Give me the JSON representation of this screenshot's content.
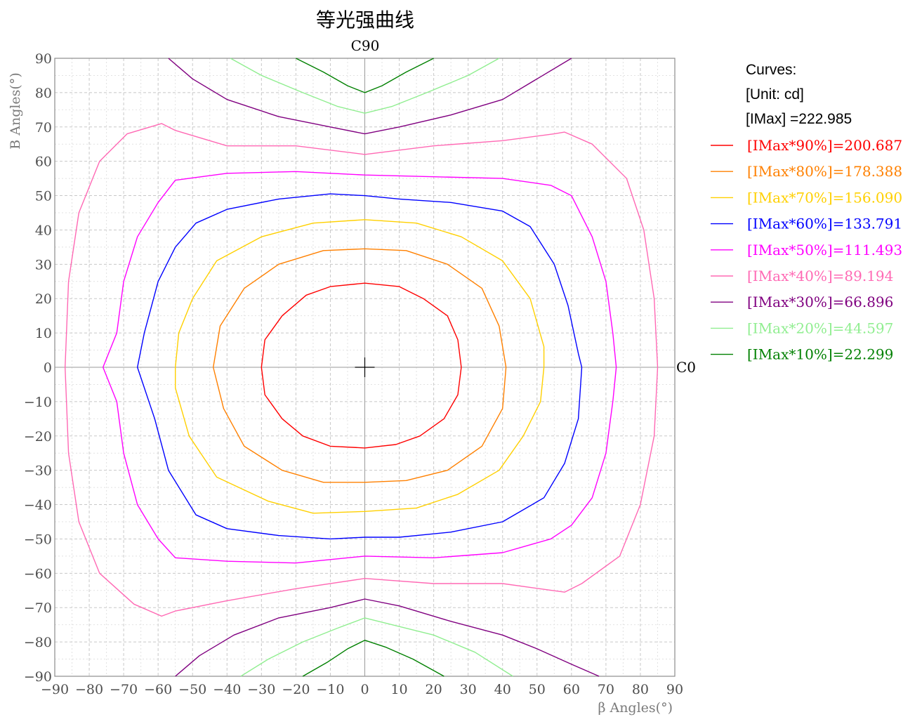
{
  "chart_data": {
    "type": "contour",
    "title": "等光强曲线",
    "top_label": "C90",
    "right_label": "C0",
    "xlabel": "β Angles(°)",
    "ylabel": "B Angles(°)",
    "xlim": [
      -90,
      90
    ],
    "ylim": [
      -90,
      90
    ],
    "x_ticks": [
      -90,
      -80,
      -70,
      -60,
      -50,
      -40,
      -30,
      -20,
      -10,
      0,
      10,
      20,
      30,
      40,
      50,
      60,
      70,
      80,
      90
    ],
    "y_ticks": [
      90,
      80,
      70,
      60,
      50,
      40,
      30,
      20,
      10,
      0,
      -10,
      -20,
      -30,
      -40,
      -50,
      -60,
      -70,
      -80,
      -90
    ],
    "grid": true,
    "legend": {
      "placement": "right",
      "header_lines": [
        "Curves:",
        "[Unit: cd]",
        "[IMax]    =222.985"
      ],
      "entries": [
        {
          "label": "[IMax*90%]=200.687",
          "color": "#ff0000"
        },
        {
          "label": "[IMax*80%]=178.388",
          "color": "#ff8000"
        },
        {
          "label": "[IMax*70%]=156.090",
          "color": "#ffd000"
        },
        {
          "label": "[IMax*60%]=133.791",
          "color": "#0000ff"
        },
        {
          "label": "[IMax*50%]=111.493",
          "color": "#ff00ff"
        },
        {
          "label": "[IMax*40%]=89.194",
          "color": "#ff69b4"
        },
        {
          "label": "[IMax*30%]=66.896",
          "color": "#800080"
        },
        {
          "label": "[IMax*20%]=44.597",
          "color": "#90ee90"
        },
        {
          "label": "[IMax*10%]=22.299",
          "color": "#008000"
        }
      ]
    },
    "series": [
      {
        "name": "[IMax*90%]=200.687",
        "color": "#ff0000",
        "value": 200.687,
        "points": [
          [
            0,
            24.5
          ],
          [
            10,
            23.5
          ],
          [
            17,
            20
          ],
          [
            24,
            15
          ],
          [
            27,
            8
          ],
          [
            28,
            0
          ],
          [
            27,
            -8
          ],
          [
            23,
            -15
          ],
          [
            16,
            -20
          ],
          [
            9,
            -22.5
          ],
          [
            0,
            -23.5
          ],
          [
            -10,
            -23
          ],
          [
            -18,
            -20
          ],
          [
            -24,
            -15
          ],
          [
            -29,
            -8
          ],
          [
            -30,
            0
          ],
          [
            -29,
            8
          ],
          [
            -24,
            15
          ],
          [
            -17,
            21
          ],
          [
            -10,
            23.5
          ],
          [
            0,
            24.5
          ]
        ]
      },
      {
        "name": "[IMax*80%]=178.388",
        "color": "#ff8000",
        "value": 178.388,
        "points": [
          [
            0,
            34.5
          ],
          [
            12,
            34
          ],
          [
            24,
            30
          ],
          [
            34,
            23
          ],
          [
            39,
            12
          ],
          [
            41,
            0
          ],
          [
            40,
            -12
          ],
          [
            34,
            -23
          ],
          [
            24,
            -30
          ],
          [
            12,
            -33
          ],
          [
            0,
            -33.5
          ],
          [
            -12,
            -33.5
          ],
          [
            -24,
            -30
          ],
          [
            -35,
            -23
          ],
          [
            -41,
            -12
          ],
          [
            -44,
            0
          ],
          [
            -42,
            12
          ],
          [
            -35,
            23
          ],
          [
            -25,
            30
          ],
          [
            -12,
            34
          ],
          [
            0,
            34.5
          ]
        ]
      },
      {
        "name": "[IMax*70%]=156.090",
        "color": "#ffd000",
        "value": 156.09,
        "points": [
          [
            0,
            43
          ],
          [
            15,
            42
          ],
          [
            28,
            38
          ],
          [
            40,
            31
          ],
          [
            48,
            20
          ],
          [
            52,
            6
          ],
          [
            52,
            0
          ],
          [
            51,
            -10
          ],
          [
            46,
            -20
          ],
          [
            39,
            -30
          ],
          [
            27,
            -37
          ],
          [
            15,
            -41
          ],
          [
            0,
            -42
          ],
          [
            -15,
            -42.5
          ],
          [
            -28,
            -39
          ],
          [
            -43,
            -32
          ],
          [
            -51,
            -20
          ],
          [
            -55,
            -6
          ],
          [
            -55,
            0
          ],
          [
            -54,
            10
          ],
          [
            -50,
            20
          ],
          [
            -43,
            31
          ],
          [
            -30,
            38
          ],
          [
            -15,
            42
          ],
          [
            0,
            43
          ]
        ]
      },
      {
        "name": "[IMax*60%]=133.791",
        "color": "#0000ff",
        "value": 133.791,
        "points": [
          [
            0,
            50
          ],
          [
            10,
            49
          ],
          [
            25,
            48
          ],
          [
            40,
            45.5
          ],
          [
            48,
            41
          ],
          [
            55,
            30
          ],
          [
            59,
            18
          ],
          [
            62,
            4
          ],
          [
            63,
            0
          ],
          [
            62,
            -15
          ],
          [
            58,
            -28
          ],
          [
            52,
            -38
          ],
          [
            40,
            -45
          ],
          [
            25,
            -48
          ],
          [
            10,
            -49.5
          ],
          [
            0,
            -49.5
          ],
          [
            -10,
            -50
          ],
          [
            -25,
            -49
          ],
          [
            -40,
            -47
          ],
          [
            -49,
            -43
          ],
          [
            -57,
            -30
          ],
          [
            -61,
            -15
          ],
          [
            -66,
            0
          ],
          [
            -64,
            10
          ],
          [
            -60,
            25
          ],
          [
            -55,
            35
          ],
          [
            -49,
            42
          ],
          [
            -40,
            46
          ],
          [
            -25,
            49
          ],
          [
            -10,
            50.5
          ],
          [
            0,
            50
          ]
        ]
      },
      {
        "name": "[IMax*50%]=111.493",
        "color": "#ff00ff",
        "value": 111.493,
        "points": [
          [
            0,
            56
          ],
          [
            20,
            55.5
          ],
          [
            40,
            55
          ],
          [
            54,
            53
          ],
          [
            60,
            50
          ],
          [
            66,
            38
          ],
          [
            70,
            25
          ],
          [
            72,
            10
          ],
          [
            73,
            0
          ],
          [
            72,
            -10
          ],
          [
            70,
            -25
          ],
          [
            66,
            -38
          ],
          [
            60,
            -46
          ],
          [
            54,
            -50
          ],
          [
            40,
            -54
          ],
          [
            20,
            -55.5
          ],
          [
            0,
            -55
          ],
          [
            -20,
            -57
          ],
          [
            -40,
            -56.5
          ],
          [
            -55,
            -55.5
          ],
          [
            -60,
            -50
          ],
          [
            -66,
            -40
          ],
          [
            -70,
            -25
          ],
          [
            -72,
            -10
          ],
          [
            -76,
            0
          ],
          [
            -72,
            10
          ],
          [
            -70,
            25
          ],
          [
            -66,
            38
          ],
          [
            -60,
            48
          ],
          [
            -55,
            54.5
          ],
          [
            -40,
            56.5
          ],
          [
            -20,
            57
          ],
          [
            0,
            56
          ]
        ]
      },
      {
        "name": "[IMax*40%]=89.194",
        "color": "#ff69b4",
        "value": 89.194,
        "points": [
          [
            0,
            62
          ],
          [
            20,
            64.5
          ],
          [
            40,
            66
          ],
          [
            55,
            68
          ],
          [
            58,
            68.5
          ],
          [
            66,
            65
          ],
          [
            76,
            55
          ],
          [
            81,
            40
          ],
          [
            84,
            20
          ],
          [
            85,
            0
          ],
          [
            84,
            -20
          ],
          [
            80,
            -40
          ],
          [
            74,
            -55
          ],
          [
            63,
            -63
          ],
          [
            58,
            -65.5
          ],
          [
            40,
            -63
          ],
          [
            20,
            -63
          ],
          [
            0,
            -61.5
          ],
          [
            -20,
            -64.5
          ],
          [
            -40,
            -68
          ],
          [
            -55,
            -71
          ],
          [
            -59,
            -72.5
          ],
          [
            -67,
            -69
          ],
          [
            -77,
            -60
          ],
          [
            -83,
            -45
          ],
          [
            -86,
            -25
          ],
          [
            -87,
            0
          ],
          [
            -86,
            25
          ],
          [
            -83,
            45
          ],
          [
            -77,
            60
          ],
          [
            -69,
            68
          ],
          [
            -59,
            71
          ],
          [
            -55,
            69
          ],
          [
            -40,
            64.5
          ],
          [
            -20,
            64.5
          ],
          [
            0,
            62
          ]
        ]
      },
      {
        "name": "[IMax*30%]=66.896",
        "color": "#800080",
        "value": 66.896,
        "points": [
          [
            -57,
            90
          ],
          [
            -50,
            84
          ],
          [
            -40,
            78
          ],
          [
            -25,
            73
          ],
          [
            -10,
            70
          ],
          [
            0,
            68
          ],
          [
            10,
            70
          ],
          [
            25,
            73.5
          ],
          [
            40,
            78
          ],
          [
            50,
            84
          ],
          [
            60,
            90
          ]
        ]
      },
      {
        "name": "[IMax*30%]=66.896 (bottom)",
        "color": "#800080",
        "value": 66.896,
        "points": [
          [
            -55,
            -90
          ],
          [
            -48,
            -84
          ],
          [
            -38,
            -78
          ],
          [
            -25,
            -73
          ],
          [
            -10,
            -70
          ],
          [
            0,
            -67.5
          ],
          [
            10,
            -69.5
          ],
          [
            25,
            -74
          ],
          [
            40,
            -78
          ],
          [
            50,
            -82
          ],
          [
            60,
            -86.5
          ],
          [
            68,
            -90
          ]
        ]
      },
      {
        "name": "[IMax*20%]=44.597",
        "color": "#90ee90",
        "value": 44.597,
        "points": [
          [
            -39,
            90
          ],
          [
            -30,
            85
          ],
          [
            -18,
            80
          ],
          [
            -8,
            76
          ],
          [
            0,
            74
          ],
          [
            8,
            76
          ],
          [
            18,
            80
          ],
          [
            30,
            85
          ],
          [
            39,
            90
          ]
        ]
      },
      {
        "name": "[IMax*20%]=44.597 (bottom)",
        "color": "#90ee90",
        "value": 44.597,
        "points": [
          [
            -36,
            -90
          ],
          [
            -28,
            -85
          ],
          [
            -18,
            -80
          ],
          [
            -8,
            -76
          ],
          [
            0,
            -73
          ],
          [
            8,
            -75
          ],
          [
            20,
            -78
          ],
          [
            32,
            -83
          ],
          [
            43,
            -90
          ]
        ]
      },
      {
        "name": "[IMax*10%]=22.299",
        "color": "#008000",
        "value": 22.299,
        "points": [
          [
            -20,
            90
          ],
          [
            -12,
            86
          ],
          [
            -5,
            82
          ],
          [
            0,
            80
          ],
          [
            5,
            82
          ],
          [
            12,
            86
          ],
          [
            20,
            90
          ]
        ]
      },
      {
        "name": "[IMax*10%]=22.299 (bottom)",
        "color": "#008000",
        "value": 22.299,
        "points": [
          [
            -18,
            -90
          ],
          [
            -11,
            -86
          ],
          [
            -5,
            -82
          ],
          [
            0,
            -79.5
          ],
          [
            6,
            -81.5
          ],
          [
            14,
            -85
          ],
          [
            23,
            -90
          ]
        ]
      }
    ]
  }
}
